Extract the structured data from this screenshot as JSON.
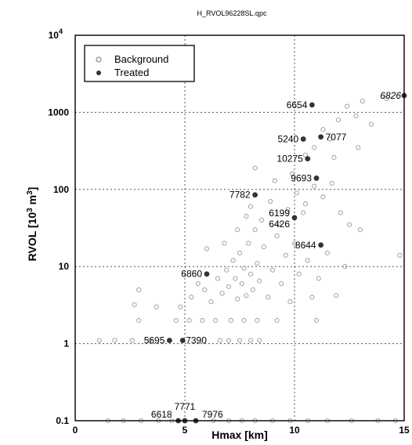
{
  "chart_data": {
    "type": "scatter",
    "title": "H_RVOL96228SL.qpc",
    "xlabel": "Hmax  [km]",
    "ylabel_main": "RVOL  [10",
    "ylabel_sup1": "3",
    "ylabel_mid": " m",
    "ylabel_sup2": "3",
    "ylabel_end": "]",
    "xlim": [
      0,
      15
    ],
    "ylim": [
      0.1,
      10000
    ],
    "y_scale": "log",
    "grid": true,
    "legend_position": "top-left",
    "x_ticks": [
      "0",
      "5",
      "10",
      "15"
    ],
    "y_ticks": [
      {
        "value": 0.1,
        "label": "0.1"
      },
      {
        "value": 1,
        "label": "1"
      },
      {
        "value": 10,
        "label": "10"
      },
      {
        "value": 100,
        "label": "100"
      },
      {
        "value": 1000,
        "label": "1000"
      },
      {
        "value": 10000,
        "label": "10",
        "sup": "4"
      }
    ],
    "series": [
      {
        "name": "Background",
        "marker": "open-circle",
        "points": [
          [
            1.5,
            0.1
          ],
          [
            2.2,
            0.1
          ],
          [
            3.0,
            0.1
          ],
          [
            3.8,
            0.1
          ],
          [
            4.4,
            0.1
          ],
          [
            6.3,
            0.1
          ],
          [
            7.0,
            0.1
          ],
          [
            7.6,
            0.1
          ],
          [
            8.2,
            0.1
          ],
          [
            9.0,
            0.1
          ],
          [
            9.8,
            0.1
          ],
          [
            10.6,
            0.1
          ],
          [
            11.5,
            0.1
          ],
          [
            12.6,
            0.1
          ],
          [
            13.8,
            0.1
          ],
          [
            14.6,
            0.1
          ],
          [
            1.1,
            1.1
          ],
          [
            1.8,
            1.1
          ],
          [
            2.6,
            1.1
          ],
          [
            3.4,
            1.1
          ],
          [
            6.6,
            1.1
          ],
          [
            7.0,
            1.1
          ],
          [
            7.5,
            1.1
          ],
          [
            8.0,
            1.1
          ],
          [
            8.4,
            1.1
          ],
          [
            2.9,
            2.0
          ],
          [
            4.6,
            2.0
          ],
          [
            5.2,
            2.0
          ],
          [
            5.8,
            2.0
          ],
          [
            6.4,
            2.0
          ],
          [
            7.1,
            2.0
          ],
          [
            7.7,
            2.0
          ],
          [
            8.3,
            2.0
          ],
          [
            9.2,
            2.0
          ],
          [
            11.0,
            2.0
          ],
          [
            2.7,
            3.2
          ],
          [
            2.9,
            5.0
          ],
          [
            3.7,
            3.0
          ],
          [
            4.8,
            3.0
          ],
          [
            5.3,
            4.0
          ],
          [
            5.6,
            6.0
          ],
          [
            5.9,
            5.0
          ],
          [
            6.2,
            3.5
          ],
          [
            6.5,
            7.0
          ],
          [
            6.7,
            4.5
          ],
          [
            6.9,
            9.0
          ],
          [
            7.0,
            5.5
          ],
          [
            7.2,
            12.0
          ],
          [
            7.3,
            7.0
          ],
          [
            7.4,
            3.8
          ],
          [
            7.5,
            15.0
          ],
          [
            7.6,
            6.0
          ],
          [
            7.7,
            9.5
          ],
          [
            7.8,
            4.2
          ],
          [
            7.9,
            20.0
          ],
          [
            8.0,
            8.0
          ],
          [
            8.1,
            5.0
          ],
          [
            8.2,
            30.0
          ],
          [
            8.3,
            11.0
          ],
          [
            8.4,
            6.5
          ],
          [
            8.6,
            18.0
          ],
          [
            8.8,
            4.0
          ],
          [
            9.0,
            9.0
          ],
          [
            9.2,
            25.0
          ],
          [
            9.4,
            6.0
          ],
          [
            9.6,
            14.0
          ],
          [
            9.8,
            3.5
          ],
          [
            10.0,
            20.0
          ],
          [
            10.2,
            8.0
          ],
          [
            10.4,
            50.0
          ],
          [
            10.6,
            12.0
          ],
          [
            10.8,
            4.0
          ],
          [
            11.1,
            7.0
          ],
          [
            11.5,
            15.0
          ],
          [
            11.9,
            4.2
          ],
          [
            12.3,
            10.0
          ],
          [
            13.0,
            30.0
          ],
          [
            14.8,
            14.0
          ],
          [
            6.0,
            17.0
          ],
          [
            6.8,
            20.0
          ],
          [
            7.4,
            30.0
          ],
          [
            7.8,
            45.0
          ],
          [
            8.0,
            60.0
          ],
          [
            8.5,
            40.0
          ],
          [
            8.9,
            70.0
          ],
          [
            9.3,
            35.0
          ],
          [
            9.7,
            55.0
          ],
          [
            10.1,
            90.0
          ],
          [
            10.5,
            65.0
          ],
          [
            10.9,
            110.0
          ],
          [
            11.3,
            80.0
          ],
          [
            11.7,
            120.0
          ],
          [
            12.1,
            50.0
          ],
          [
            12.5,
            35.0
          ],
          [
            8.2,
            190.0
          ],
          [
            9.1,
            130.0
          ],
          [
            9.9,
            160.0
          ],
          [
            10.5,
            280.0
          ],
          [
            10.9,
            350.0
          ],
          [
            11.3,
            600.0
          ],
          [
            11.6,
            450.0
          ],
          [
            12.0,
            800.0
          ],
          [
            12.4,
            1200.0
          ],
          [
            12.8,
            900.0
          ],
          [
            13.1,
            1400.0
          ],
          [
            13.5,
            700.0
          ],
          [
            14.2,
            1500.0
          ],
          [
            12.9,
            350.0
          ],
          [
            11.8,
            260.0
          ]
        ]
      },
      {
        "name": "Treated",
        "marker": "filled-circle",
        "points": [
          {
            "id": "6654",
            "x": 10.8,
            "y": 1250
          },
          {
            "id": "6826",
            "x": 15.0,
            "y": 1650
          },
          {
            "id": "5240",
            "x": 10.4,
            "y": 450
          },
          {
            "id": "7077",
            "x": 11.2,
            "y": 480
          },
          {
            "id": "10275",
            "x": 10.6,
            "y": 250
          },
          {
            "id": "9693",
            "x": 11.0,
            "y": 140
          },
          {
            "id": "7782",
            "x": 8.2,
            "y": 85
          },
          {
            "id": "6199",
            "x": 10.0,
            "y": 43
          },
          {
            "id": "6426",
            "x": null,
            "y": null
          },
          {
            "id": "8644",
            "x": 11.2,
            "y": 19
          },
          {
            "id": "6860",
            "x": 6.0,
            "y": 8
          },
          {
            "id": "5695",
            "x": 4.3,
            "y": 1.1
          },
          {
            "id": "7390",
            "x": 4.9,
            "y": 1.1
          },
          {
            "id": "6618",
            "x": 4.7,
            "y": 0.1
          },
          {
            "id": "7771",
            "x": 5.0,
            "y": 0.1
          },
          {
            "id": "7976",
            "x": 5.5,
            "y": 0.1
          }
        ]
      }
    ]
  }
}
